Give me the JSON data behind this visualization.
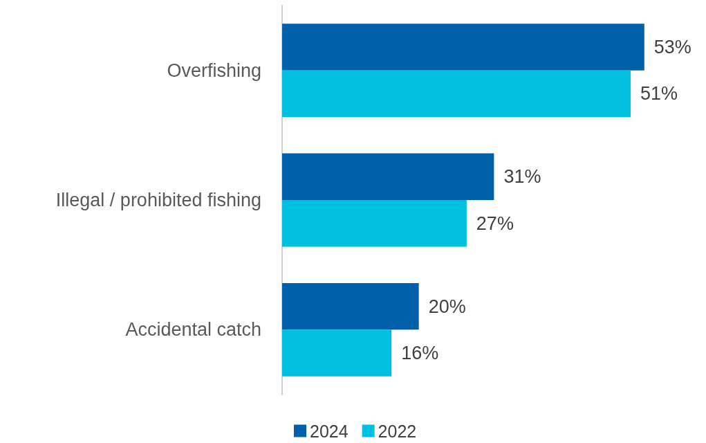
{
  "chart_data": {
    "type": "bar",
    "orientation": "horizontal",
    "categories": [
      "Overfishing",
      "Illegal / prohibited fishing",
      "Accidental catch"
    ],
    "series": [
      {
        "name": "2024",
        "color": "#0060a9",
        "values": [
          53,
          31,
          20
        ],
        "value_labels": [
          "53%",
          "31%",
          "20%"
        ]
      },
      {
        "name": "2022",
        "color": "#00bfdf",
        "values": [
          51,
          27,
          16
        ],
        "value_labels": [
          "51%",
          "27%",
          "16%"
        ]
      }
    ],
    "legend": "bottom",
    "grid": false
  }
}
